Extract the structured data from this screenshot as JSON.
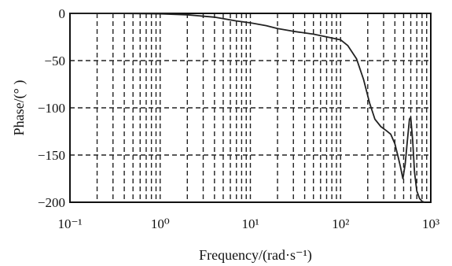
{
  "chart_data": {
    "type": "line",
    "xscale": "log",
    "xlim": [
      0.1,
      1000
    ],
    "ylim": [
      -200,
      0
    ],
    "grid": true,
    "xlabel": "Frequency/(rad·s⁻¹)",
    "ylabel": "Phase/(° )",
    "x_ticks": [
      {
        "value": 0.1,
        "label": "10⁻¹"
      },
      {
        "value": 1,
        "label": "10⁰"
      },
      {
        "value": 10,
        "label": "10¹"
      },
      {
        "value": 100,
        "label": "10²"
      },
      {
        "value": 1000,
        "label": "10³"
      }
    ],
    "y_ticks": [
      {
        "value": 0,
        "label": "0"
      },
      {
        "value": -50,
        "label": "−50"
      },
      {
        "value": -100,
        "label": "−100"
      },
      {
        "value": -150,
        "label": "−150"
      },
      {
        "value": -200,
        "label": "−200"
      }
    ],
    "series": [
      {
        "color": "#222222",
        "x": [
          0.1,
          0.3,
          1,
          2,
          4,
          7,
          10,
          15,
          20,
          30,
          50,
          80,
          100,
          120,
          150,
          180,
          210,
          240,
          280,
          320,
          360,
          400,
          430,
          460,
          490,
          520,
          550,
          580,
          600,
          630,
          660,
          700,
          750,
          800,
          850
        ],
        "y": [
          0,
          0,
          -0.5,
          -1.5,
          -4,
          -8,
          -10,
          -13,
          -16,
          -19,
          -22,
          -26,
          -28,
          -34,
          -48,
          -70,
          -95,
          -112,
          -120,
          -124,
          -128,
          -138,
          -150,
          -162,
          -175,
          -160,
          -135,
          -112,
          -110,
          -135,
          -168,
          -188,
          -196,
          -199,
          -200
        ]
      }
    ]
  }
}
